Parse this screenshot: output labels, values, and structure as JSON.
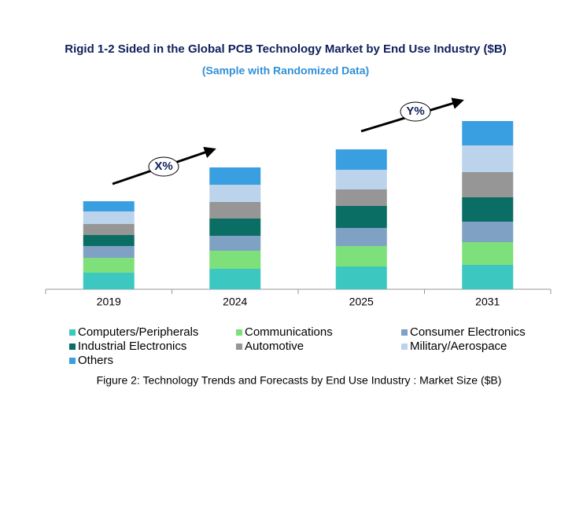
{
  "chart_data": {
    "type": "stacked_bar",
    "title": "Rigid 1-2 Sided in the Global PCB Technology Market by End Use Industry ($B)",
    "subtitle": "(Sample with Randomized Data)",
    "caption": "Figure 2: Technology Trends and Forecasts by End Use Industry : Market Size ($B)",
    "annotations": [
      "X%",
      "Y%"
    ],
    "categories": [
      "2019",
      "2024",
      "2025",
      "2031"
    ],
    "ylim": [
      0,
      230
    ],
    "series": [
      {
        "name": "Computers/Peripherals",
        "color": "#3cc8c0",
        "values": [
          21,
          26,
          29,
          31
        ]
      },
      {
        "name": "Communications",
        "color": "#7de07a",
        "values": [
          19,
          23,
          26,
          29
        ]
      },
      {
        "name": "Consumer Electronics",
        "color": "#7fa1c4",
        "values": [
          15,
          19,
          23,
          26
        ]
      },
      {
        "name": "Industrial Electronics",
        "color": "#0b6e64",
        "values": [
          14,
          22,
          28,
          31
        ]
      },
      {
        "name": "Automotive",
        "color": "#969696",
        "values": [
          14,
          21,
          21,
          32
        ]
      },
      {
        "name": "Military/Aerospace",
        "color": "#bcd3ec",
        "values": [
          16,
          22,
          25,
          34
        ]
      },
      {
        "name": "Others",
        "color": "#3a9fe0",
        "values": [
          13,
          22,
          26,
          31
        ]
      }
    ]
  }
}
